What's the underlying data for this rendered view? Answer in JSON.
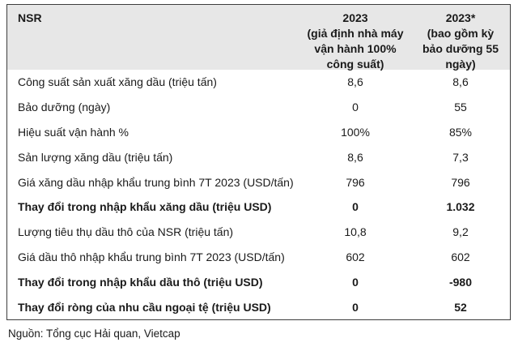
{
  "chart_data": {
    "type": "table",
    "header": {
      "col1": "NSR",
      "col2": "2023\n(giả định nhà máy\nvận hành 100%\ncông suất)",
      "col3": "2023*\n(bao gồm kỳ\nbảo dưỡng 55\nngày)"
    },
    "columns_flat": [
      "NSR",
      "2023 (giả định nhà máy vận hành 100% công suất)",
      "2023* (bao gồm kỳ bảo dưỡng 55 ngày)"
    ],
    "rows": [
      {
        "label": "Công suất sản xuất xăng dầu (triệu tấn)",
        "v2023": "8,6",
        "v2023_star": "8,6",
        "bold": false
      },
      {
        "label": "Bảo dưỡng (ngày)",
        "v2023": "0",
        "v2023_star": "55",
        "bold": false
      },
      {
        "label": "Hiệu suất vận hành %",
        "v2023": "100%",
        "v2023_star": "85%",
        "bold": false
      },
      {
        "label": "Sản lượng xăng dầu (triệu tấn)",
        "v2023": "8,6",
        "v2023_star": "7,3",
        "bold": false
      },
      {
        "label": "Giá xăng dầu nhập khẩu trung bình 7T 2023 (USD/tấn)",
        "v2023": "796",
        "v2023_star": "796",
        "bold": false
      },
      {
        "label": "Thay đổi trong nhập khẩu xăng dầu (triệu USD)",
        "v2023": "0",
        "v2023_star": "1.032",
        "bold": true
      },
      {
        "label": "Lượng tiêu thụ dầu thô của NSR (triệu tấn)",
        "v2023": "10,8",
        "v2023_star": "9,2",
        "bold": false
      },
      {
        "label": "Giá dầu thô nhập khẩu trung bình 7T 2023 (USD/tấn)",
        "v2023": "602",
        "v2023_star": "602",
        "bold": false
      },
      {
        "label": "Thay đổi trong nhập khẩu dầu thô (triệu USD)",
        "v2023": "0",
        "v2023_star": "-980",
        "bold": true
      },
      {
        "label": "Thay đổi ròng của nhu cầu ngoại tệ (triệu USD)",
        "v2023": "0",
        "v2023_star": "52",
        "bold": true
      }
    ],
    "source": "Nguồn: Tổng cục Hải quan, Vietcap"
  },
  "colors": {
    "header_bg": "#e7e7e7",
    "border": "#3d3d3d",
    "text": "#1a1a1a",
    "background": "#ffffff"
  }
}
